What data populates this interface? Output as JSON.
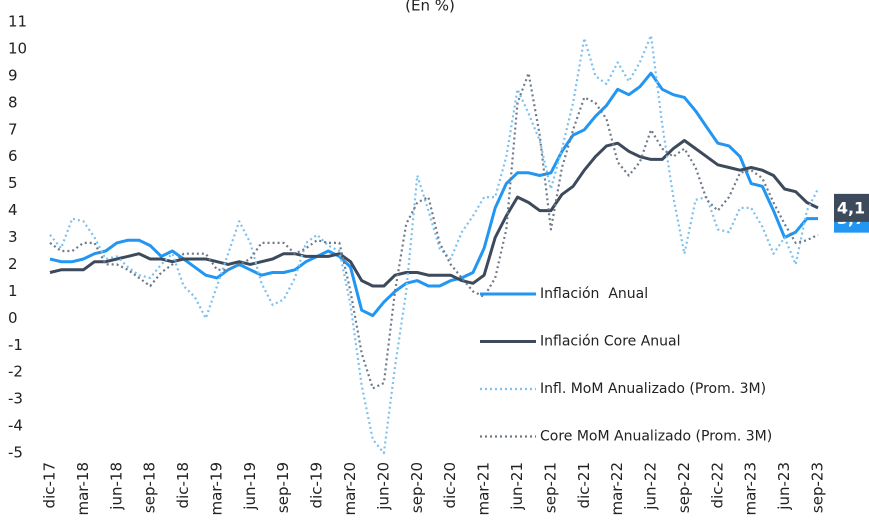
{
  "chart_data": {
    "type": "line",
    "title": "(En %)",
    "categories": [
      "dic-17",
      null,
      null,
      "mar-18",
      null,
      null,
      "jun-18",
      null,
      null,
      "sep-18",
      null,
      null,
      "dic-18",
      null,
      null,
      "mar-19",
      null,
      null,
      "jun-19",
      null,
      null,
      "sep-19",
      null,
      null,
      "dic-19",
      null,
      null,
      "mar-20",
      null,
      null,
      "jun-20",
      null,
      null,
      "sep-20",
      null,
      null,
      "dic-20",
      null,
      null,
      "mar-21",
      null,
      null,
      "jun-21",
      null,
      null,
      "sep-21",
      null,
      null,
      "dic-21",
      null,
      null,
      "mar-22",
      null,
      null,
      "jun-22",
      null,
      null,
      "sep-22",
      null,
      null,
      "dic-22",
      null,
      null,
      "mar-23",
      null,
      null,
      "jun-23",
      null,
      null,
      "sep-23"
    ],
    "series": [
      {
        "name": "Inflación  Anual",
        "color": "#2196f3",
        "style": "solid",
        "values": [
          2.2,
          2.1,
          2.1,
          2.2,
          2.4,
          2.5,
          2.8,
          2.9,
          2.9,
          2.7,
          2.3,
          2.5,
          2.2,
          1.9,
          1.6,
          1.5,
          1.8,
          2.0,
          1.8,
          1.6,
          1.7,
          1.7,
          1.8,
          2.1,
          2.3,
          2.5,
          2.3,
          1.9,
          0.3,
          0.1,
          0.6,
          1.0,
          1.3,
          1.4,
          1.2,
          1.2,
          1.4,
          1.5,
          1.7,
          2.6,
          4.1,
          5.0,
          5.4,
          5.4,
          5.3,
          5.4,
          6.2,
          6.8,
          7.0,
          7.5,
          7.9,
          8.5,
          8.3,
          8.6,
          9.1,
          8.5,
          8.3,
          8.2,
          7.7,
          7.1,
          6.5,
          6.4,
          6.0,
          5.0,
          4.9,
          4.0,
          3.0,
          3.2,
          3.7,
          3.7
        ],
        "value_labels": [
          null,
          null,
          null,
          null,
          null,
          null,
          null,
          null,
          null,
          null,
          null,
          null,
          null,
          null,
          null,
          null,
          null,
          null,
          null,
          null,
          null,
          null,
          null,
          null,
          null,
          null,
          null,
          null,
          null,
          null,
          null,
          null,
          null,
          null,
          null,
          null,
          null,
          null,
          null,
          null,
          null,
          null,
          null,
          null,
          null,
          null,
          null,
          null,
          null,
          null,
          null,
          null,
          null,
          null,
          null,
          null,
          null,
          null,
          null,
          null,
          null,
          null,
          null,
          null,
          null,
          null,
          null,
          null,
          null,
          "3,7"
        ]
      },
      {
        "name": "Inflación Core Anual",
        "color": "#3d4a5c",
        "style": "solid",
        "values": [
          1.7,
          1.8,
          1.8,
          1.8,
          2.1,
          2.1,
          2.2,
          2.3,
          2.4,
          2.2,
          2.2,
          2.1,
          2.2,
          2.2,
          2.2,
          2.1,
          2.0,
          2.1,
          2.0,
          2.1,
          2.2,
          2.4,
          2.4,
          2.3,
          2.3,
          2.3,
          2.4,
          2.1,
          1.4,
          1.2,
          1.2,
          1.6,
          1.7,
          1.7,
          1.6,
          1.6,
          1.6,
          1.4,
          1.3,
          1.6,
          3.0,
          3.8,
          4.5,
          4.3,
          4.0,
          4.0,
          4.6,
          4.9,
          5.5,
          6.0,
          6.4,
          6.5,
          6.2,
          6.0,
          5.9,
          5.9,
          6.3,
          6.6,
          6.3,
          6.0,
          5.7,
          5.6,
          5.5,
          5.6,
          5.5,
          5.3,
          4.8,
          4.7,
          4.3,
          4.1
        ],
        "value_labels": [
          null,
          null,
          null,
          null,
          null,
          null,
          null,
          null,
          null,
          null,
          null,
          null,
          null,
          null,
          null,
          null,
          null,
          null,
          null,
          null,
          null,
          null,
          null,
          null,
          null,
          null,
          null,
          null,
          null,
          null,
          null,
          null,
          null,
          null,
          null,
          null,
          null,
          null,
          null,
          null,
          null,
          null,
          null,
          null,
          null,
          null,
          null,
          null,
          null,
          null,
          null,
          null,
          null,
          null,
          null,
          null,
          null,
          null,
          null,
          null,
          null,
          null,
          null,
          null,
          null,
          null,
          null,
          null,
          null,
          "4,1"
        ]
      },
      {
        "name": "Infl. MoM Anualizado (Prom. 3M)",
        "color": "#7cc0ee",
        "style": "dotted",
        "values": [
          3.1,
          2.6,
          3.7,
          3.6,
          3.0,
          2.2,
          2.3,
          1.9,
          1.6,
          1.5,
          2.0,
          2.4,
          1.2,
          0.8,
          0.0,
          1.2,
          2.4,
          3.6,
          2.8,
          1.3,
          0.5,
          0.7,
          1.5,
          2.8,
          3.1,
          2.7,
          2.5,
          0.5,
          -2.5,
          -4.5,
          -5.0,
          -1.8,
          1.0,
          5.3,
          4.0,
          2.6,
          2.2,
          3.2,
          3.8,
          4.5,
          4.5,
          6.0,
          8.5,
          7.6,
          6.6,
          4.8,
          6.3,
          8.0,
          10.4,
          9.0,
          8.7,
          9.5,
          8.8,
          9.5,
          10.5,
          7.2,
          4.5,
          2.4,
          4.4,
          4.5,
          3.3,
          3.2,
          4.1,
          4.1,
          3.4,
          2.4,
          3.0,
          2.0,
          4.0,
          4.8
        ]
      },
      {
        "name": "Core MoM Anualizado (Prom. 3M)",
        "color": "#6f7a89",
        "style": "dotted",
        "values": [
          2.8,
          2.5,
          2.5,
          2.8,
          2.8,
          2.0,
          2.0,
          1.8,
          1.5,
          1.2,
          1.7,
          2.0,
          2.4,
          2.4,
          2.4,
          1.8,
          1.8,
          2.0,
          2.2,
          2.8,
          2.8,
          2.8,
          2.4,
          2.6,
          2.9,
          2.8,
          2.8,
          1.0,
          -1.3,
          -2.6,
          -2.4,
          1.0,
          3.5,
          4.3,
          4.5,
          2.8,
          2.0,
          1.5,
          1.0,
          0.8,
          1.5,
          3.3,
          8.0,
          9.1,
          6.8,
          3.3,
          5.6,
          7.0,
          8.2,
          8.0,
          7.4,
          5.8,
          5.3,
          5.8,
          7.0,
          6.3,
          6.0,
          6.3,
          5.6,
          4.4,
          4.0,
          4.5,
          5.4,
          5.5,
          5.2,
          4.3,
          3.5,
          2.8,
          2.9,
          3.1
        ]
      }
    ],
    "ylim": [
      -5,
      11
    ],
    "yticks": [
      -5,
      -4,
      -3,
      -2,
      -1,
      0,
      1,
      2,
      3,
      4,
      5,
      6,
      7,
      8,
      9,
      10,
      11
    ],
    "grid": false,
    "legend": "right"
  }
}
